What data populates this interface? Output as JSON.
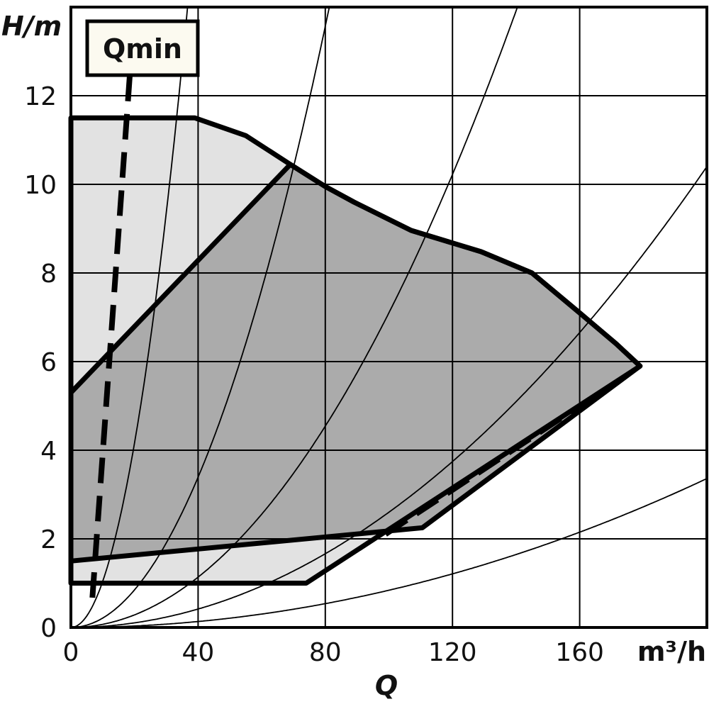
{
  "chart_data": {
    "type": "area",
    "xlabel": "Q",
    "x_unit": "m³/h",
    "ylabel": "H/m",
    "xlim": [
      0,
      200
    ],
    "ylim": [
      0,
      14
    ],
    "grid": true,
    "x_ticks": [
      "0",
      "40",
      "80",
      "120",
      "160"
    ],
    "y_ticks": [
      "0",
      "2",
      "4",
      "6",
      "8",
      "10",
      "12"
    ],
    "annotation": "Qmin",
    "colors": {
      "outer_region": "#e2e2e2",
      "inner_region": "#ababab",
      "lines": "#000000",
      "label_box": "#fcfaf0"
    },
    "outer_region": [
      [
        0,
        11.5
      ],
      [
        39,
        11.5
      ],
      [
        55,
        11.1
      ],
      [
        69,
        10.45
      ],
      [
        80,
        9.95
      ],
      [
        89,
        9.6
      ],
      [
        107,
        8.96
      ],
      [
        129,
        8.48
      ],
      [
        145,
        8.0
      ],
      [
        160,
        7.1
      ],
      [
        171.5,
        6.4
      ],
      [
        179,
        5.9
      ],
      [
        74,
        1.0
      ],
      [
        0,
        1.0
      ]
    ],
    "inner_region": [
      [
        0,
        5.3
      ],
      [
        69,
        10.45
      ],
      [
        80,
        9.95
      ],
      [
        89,
        9.6
      ],
      [
        107,
        8.96
      ],
      [
        129,
        8.48
      ],
      [
        145,
        8.0
      ],
      [
        160,
        7.1
      ],
      [
        171.5,
        6.4
      ],
      [
        179,
        5.9
      ],
      [
        110.5,
        2.25
      ],
      [
        0,
        1.5
      ]
    ],
    "qmin_line": [
      [
        18.5,
        12.45
      ],
      [
        6.7,
        0.6
      ]
    ],
    "lower_dashed_line": [
      [
        99,
        2.1
      ],
      [
        176,
        5.75
      ]
    ],
    "system_curves_k": [
      0.0104,
      0.00212,
      0.00071,
      0.00026,
      8.4e-05
    ]
  }
}
